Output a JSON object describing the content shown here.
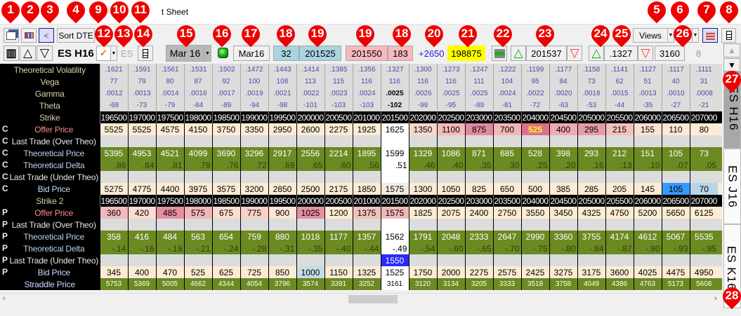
{
  "window": {
    "title": "t Sheet"
  },
  "toolbar1": {
    "sort_label": "Sort DTE",
    "back_label": "<",
    "views_label": "Views"
  },
  "toolbar2": {
    "symbol": "ES H16",
    "root": "ES",
    "expiry": "Mar 16",
    "expiry_short": "Mar16",
    "days": "32",
    "underlying": "201525",
    "bid_under": "201550",
    "offer_count": "183",
    "change": "+2650",
    "yellow_value": "198875",
    "price_value": "201537",
    "vol_value": ".1327",
    "straddle_value": "3160",
    "small_count": "8"
  },
  "tabs": [
    "ES H16",
    "ES J16",
    "ES K16"
  ],
  "colors": {
    "theo_green": "#6b8a22",
    "cream": "#fdebd3",
    "last_under_blue": "#2a2aff",
    "highlight_yellow": "#ffff00"
  },
  "grid": {
    "strikes": [
      "196500",
      "197000",
      "197500",
      "198000",
      "198500",
      "199000",
      "199500",
      "200000",
      "200500",
      "201000",
      "201500",
      "202000",
      "202500",
      "203000",
      "203500",
      "204000",
      "204500",
      "205000",
      "205500",
      "206000",
      "206500",
      "207000"
    ],
    "atm_index": 10,
    "header_rows": [
      {
        "label": "Theoretical Volatility",
        "values": [
          ".1621",
          ".1591",
          ".1561",
          ".1531",
          ".1502",
          ".1472",
          ".1443",
          ".1414",
          ".1385",
          ".1356",
          ".1327",
          ".1300",
          ".1273",
          ".1247",
          ".1222",
          ".1199",
          ".1177",
          ".1158",
          ".1141",
          ".1127",
          ".1117",
          ".1111"
        ]
      },
      {
        "label": "Vega",
        "values": [
          "77",
          "79",
          "80",
          "87",
          "92",
          "100",
          "108",
          "113",
          "115",
          "116",
          "116",
          "116",
          "116",
          "111",
          "104",
          "95",
          "84",
          "73",
          "62",
          "51",
          "40",
          "31"
        ]
      },
      {
        "label": "Gamma",
        "values": [
          ".0012",
          ".0013",
          ".0014",
          ".0016",
          ".0017",
          ".0019",
          ".0021",
          ".0022",
          ".0023",
          ".0024",
          ".0025",
          ".0026",
          ".0025",
          ".0025",
          ".0024",
          ".0022",
          ".0020",
          ".0018",
          ".0015",
          ".0013",
          ".0010",
          ".0008"
        ]
      },
      {
        "label": "Theta",
        "values": [
          "-68",
          "-73",
          "-79",
          "-84",
          "-89",
          "-94",
          "-98",
          "-101",
          "-103",
          "-103",
          "-102",
          "-99",
          "-95",
          "-89",
          "-81",
          "-72",
          "-63",
          "-53",
          "-44",
          "-35",
          "-27",
          "-21"
        ]
      }
    ],
    "strike_label": "Strike",
    "strike2_label": "Strike 2",
    "calls": {
      "tag": "C",
      "rows": [
        {
          "label": "Offer Price",
          "type": "offer",
          "values": [
            "5525",
            "5525",
            "4575",
            "4150",
            "3750",
            "3350",
            "2950",
            "2600",
            "2275",
            "1925",
            "1625",
            "1350",
            "1100",
            "875",
            "700",
            "525",
            "400",
            "295",
            "215",
            "155",
            "110",
            "80"
          ],
          "bg": [
            "#fdebd3",
            "#fdebd3",
            "#fdebd3",
            "#fdebd3",
            "#fdebd3",
            "#fdebd3",
            "#fdebd3",
            "#fdebd3",
            "#fdebd3",
            "#fdebd3",
            "#ffffff",
            "#f8d6cc",
            "#f4b8b8",
            "#e088a0",
            "#f2b6b6",
            "#dd6f90",
            "#eda9b4",
            "#e59aaa",
            "#f3c0bc",
            "#fbe1d3",
            "#fde8d6",
            "#fdebd3"
          ]
        },
        {
          "label": "Last Trade (Over Theo)",
          "type": "empty",
          "values": []
        },
        {
          "label": "Theoretical Price",
          "type": "theo",
          "values": [
            "5395",
            "4953",
            "4521",
            "4099",
            "3690",
            "3296",
            "2917",
            "2556",
            "2214",
            "1895",
            "1599",
            "1329",
            "1086",
            "871",
            "685",
            "528",
            "398",
            "293",
            "212",
            "151",
            "105",
            "73"
          ]
        },
        {
          "label": "Theoretical Delta",
          "type": "delta",
          "values": [
            ".86",
            ".84",
            ".81",
            ".79",
            ".76",
            ".72",
            ".69",
            ".65",
            ".60",
            ".56",
            ".51",
            ".46",
            ".40",
            ".35",
            ".30",
            ".25",
            ".20",
            ".16",
            ".13",
            ".10",
            ".07",
            ".05"
          ]
        },
        {
          "label": "Last Trade (Under Theo)",
          "type": "empty",
          "values": []
        },
        {
          "label": "Bid Price",
          "type": "bid",
          "values": [
            "5275",
            "4775",
            "4400",
            "3975",
            "3575",
            "3200",
            "2850",
            "2500",
            "2175",
            "1850",
            "1575",
            "1300",
            "1050",
            "825",
            "650",
            "500",
            "385",
            "285",
            "205",
            "145",
            "105",
            "70"
          ],
          "bg": [
            "#fdebd3",
            "#fdebd3",
            "#fdebd3",
            "#fdebd3",
            "#fdebd3",
            "#fdebd3",
            "#fdebd3",
            "#fdebd3",
            "#fdebd3",
            "#fdebd3",
            "#f2ece0",
            "#fdebd3",
            "#fdebd3",
            "#fdebd3",
            "#fdebd3",
            "#fdebd3",
            "#fdebd3",
            "#fdebd3",
            "#fdebd3",
            "#fdebd3",
            "#3399ff",
            "#b8d4e8"
          ]
        }
      ]
    },
    "puts": {
      "tag": "P",
      "rows": [
        {
          "label": "Offer Price",
          "type": "offer",
          "values": [
            "360",
            "420",
            "485",
            "575",
            "675",
            "775",
            "900",
            "1025",
            "1200",
            "1375",
            "1575",
            "1825",
            "2075",
            "2400",
            "2750",
            "3550",
            "3450",
            "4325",
            "4750",
            "5200",
            "5650",
            "6125"
          ],
          "bg": [
            "#f2b8bc",
            "#fbdcd0",
            "#e78ea0",
            "#f2b6b6",
            "#fbdcd0",
            "#f8d0c8",
            "#fde5d5",
            "#e48ea2",
            "#fdebd3",
            "#f4c0bc",
            "#f0b8b8",
            "#fdebd3",
            "#fdebd3",
            "#fdebd3",
            "#fdebd3",
            "#fdebd3",
            "#fdebd3",
            "#fdebd3",
            "#fdebd3",
            "#fdebd3",
            "#fdebd3",
            "#fdebd3"
          ]
        },
        {
          "label": "Last Trade (Over Theo)",
          "type": "empty",
          "values": []
        },
        {
          "label": "Theoretical Price",
          "type": "theo",
          "values": [
            "358",
            "416",
            "484",
            "563",
            "654",
            "759",
            "880",
            "1018",
            "1177",
            "1357",
            "1562",
            "1791",
            "2048",
            "2333",
            "2647",
            "2990",
            "3360",
            "3755",
            "4174",
            "4612",
            "5067",
            "5535"
          ]
        },
        {
          "label": "Theoretical Delta",
          "type": "delta",
          "values": [
            "-.14",
            "-.16",
            "-.19",
            "-.21",
            "-.24",
            "-.28",
            "-.31",
            "-.35",
            "-.40",
            "-.44",
            "-.49",
            "-.54",
            "-.60",
            "-.65",
            "-.70",
            "-.75",
            "-.80",
            "-.84",
            "-.87",
            "-.90",
            "-.93",
            "-.95"
          ]
        },
        {
          "label": "Last Trade (Under Theo)",
          "type": "empty",
          "values": [
            "",
            "",
            "",
            "",
            "",
            "",
            "",
            "",
            "",
            "",
            "1550"
          ]
        },
        {
          "label": "Bid Price",
          "type": "bid",
          "values": [
            "345",
            "400",
            "470",
            "525",
            "625",
            "725",
            "850",
            "1000",
            "1150",
            "1325",
            "1525",
            "1750",
            "2000",
            "2275",
            "2575",
            "2425",
            "3275",
            "3175",
            "3600",
            "4025",
            "4475",
            "4950"
          ],
          "bg": [
            "#fdebd3",
            "#fdebd3",
            "#fdebd3",
            "#fdebd3",
            "#fdebd3",
            "#fdebd3",
            "#fdebd3",
            "#c6dbe8",
            "#fdebd3",
            "#fdebd3",
            "#ffffff",
            "#fdebd3",
            "#fdebd3",
            "#fdebd3",
            "#fdebd3",
            "#fdebd3",
            "#fdebd3",
            "#fdebd3",
            "#fdebd3",
            "#fdebd3",
            "#fdebd3",
            "#fdebd3"
          ]
        }
      ]
    },
    "straddle": {
      "label": "Straddle Price",
      "values": [
        "5753",
        "5369",
        "5005",
        "4662",
        "4344",
        "4054",
        "3796",
        "3574",
        "3391",
        "3252",
        "3161",
        "3120",
        "3134",
        "3205",
        "3333",
        "3518",
        "3758",
        "4049",
        "4386",
        "4763",
        "5173",
        "5608"
      ]
    }
  },
  "markers": [
    "1",
    "2",
    "3",
    "4",
    "5",
    "6",
    "7",
    "8",
    "9",
    "10",
    "11",
    "12",
    "13",
    "14",
    "15",
    "16",
    "17",
    "18",
    "19",
    "19",
    "18",
    "20",
    "21",
    "22",
    "23",
    "24",
    "25",
    "26",
    "27",
    "28"
  ]
}
